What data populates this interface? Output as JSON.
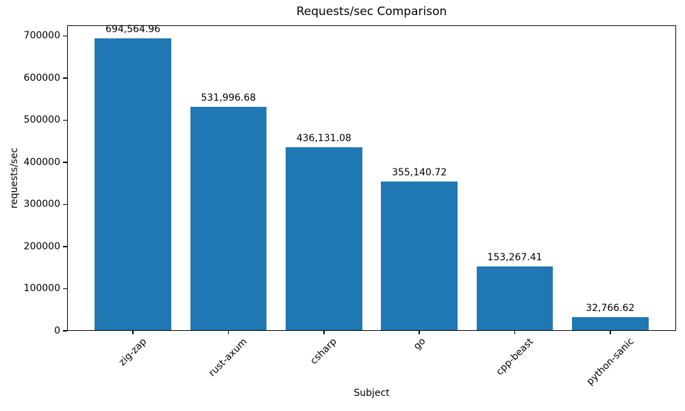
{
  "chart_data": {
    "type": "bar",
    "title": "Requests/sec Comparison",
    "xlabel": "Subject",
    "ylabel": "requests/sec",
    "categories": [
      "zig-zap",
      "rust-axum",
      "csharp",
      "go",
      "cpp-beast",
      "python-sanic"
    ],
    "values": [
      694564.96,
      531996.68,
      436131.08,
      355140.72,
      153267.41,
      32766.62
    ],
    "value_labels": [
      "694,564.96",
      "531,996.68",
      "436,131.08",
      "355,140.72",
      "153,267.41",
      "32,766.62"
    ],
    "yticks": [
      0,
      100000,
      200000,
      300000,
      400000,
      500000,
      600000,
      700000
    ],
    "ytick_labels": [
      "0",
      "100000",
      "200000",
      "300000",
      "400000",
      "500000",
      "600000",
      "700000"
    ],
    "ylim": [
      0,
      725000
    ],
    "bar_color": "#1f77b4",
    "text_color": "#000000",
    "spine_color": "#000000",
    "bar_width_fraction": 0.8,
    "xtick_rotation_deg": 45,
    "grid": false,
    "legend": null,
    "background_color": "#ffffff"
  }
}
